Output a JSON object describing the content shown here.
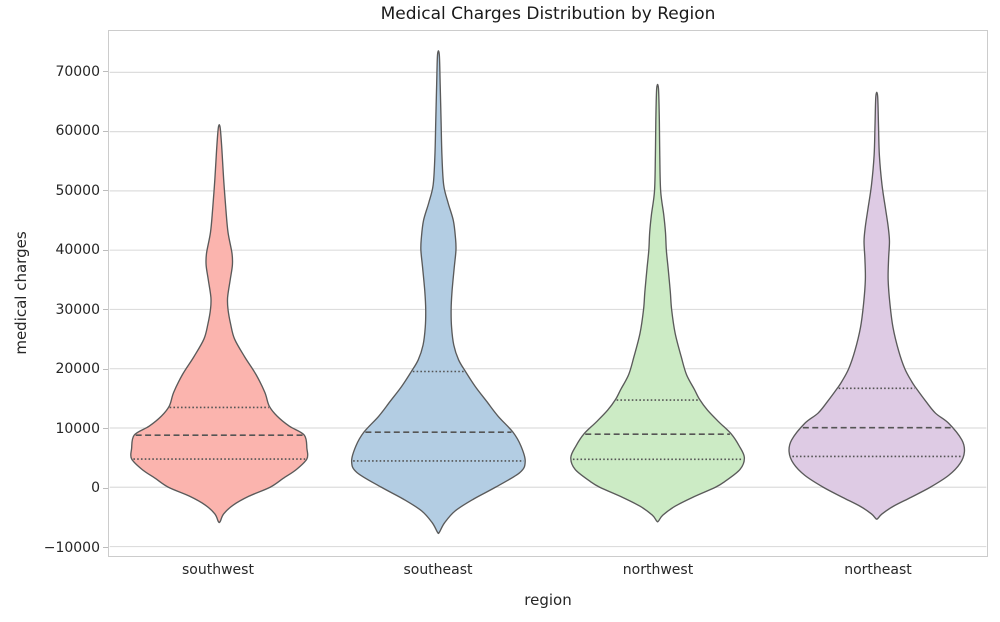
{
  "chart_data": {
    "type": "violin",
    "title": "Medical Charges Distribution by Region",
    "xlabel": "region",
    "ylabel": "medical charges",
    "categories": [
      "southwest",
      "southeast",
      "northwest",
      "northeast"
    ],
    "ylim": [
      -11600,
      77000
    ],
    "yticks": [
      70000,
      60000,
      50000,
      40000,
      30000,
      20000,
      10000,
      0,
      -10000
    ],
    "ytick_labels": [
      "70000",
      "60000",
      "50000",
      "40000",
      "30000",
      "20000",
      "10000",
      "0",
      "−10000"
    ],
    "grid": true,
    "legend": false,
    "inner": "quartile",
    "violin_width": 0.8,
    "series": [
      {
        "name": "southwest",
        "color": "#fbb4ae",
        "quartiles": {
          "q1": 4751,
          "median": 8798,
          "q3": 13462
        },
        "kde_range": [
          -5800,
          60700
        ],
        "profile": [
          [
            60700,
            0.01
          ],
          [
            57000,
            0.03
          ],
          [
            52000,
            0.05
          ],
          [
            47000,
            0.075
          ],
          [
            43000,
            0.1
          ],
          [
            39500,
            0.145
          ],
          [
            37500,
            0.15
          ],
          [
            35000,
            0.125
          ],
          [
            32000,
            0.095
          ],
          [
            30000,
            0.1
          ],
          [
            27500,
            0.13
          ],
          [
            25000,
            0.175
          ],
          [
            22000,
            0.29
          ],
          [
            19000,
            0.42
          ],
          [
            16000,
            0.52
          ],
          [
            13700,
            0.57
          ],
          [
            12000,
            0.66
          ],
          [
            10300,
            0.8
          ],
          [
            8800,
            0.97
          ],
          [
            6500,
            1.0
          ],
          [
            4800,
            1.0
          ],
          [
            3000,
            0.88
          ],
          [
            1500,
            0.73
          ],
          [
            0,
            0.58
          ],
          [
            -1500,
            0.34
          ],
          [
            -3000,
            0.16
          ],
          [
            -4500,
            0.05
          ],
          [
            -5800,
            0.01
          ]
        ]
      },
      {
        "name": "southeast",
        "color": "#b3cde3",
        "quartiles": {
          "q1": 4441,
          "median": 9294,
          "q3": 19527
        },
        "kde_range": [
          -7600,
          73000
        ],
        "profile": [
          [
            73000,
            0.01
          ],
          [
            68000,
            0.02
          ],
          [
            62000,
            0.03
          ],
          [
            56000,
            0.04
          ],
          [
            51000,
            0.06
          ],
          [
            48000,
            0.11
          ],
          [
            45000,
            0.17
          ],
          [
            42000,
            0.195
          ],
          [
            40000,
            0.2
          ],
          [
            37000,
            0.18
          ],
          [
            33000,
            0.155
          ],
          [
            30000,
            0.145
          ],
          [
            27000,
            0.15
          ],
          [
            24000,
            0.175
          ],
          [
            21500,
            0.23
          ],
          [
            19500,
            0.31
          ],
          [
            17000,
            0.42
          ],
          [
            14500,
            0.55
          ],
          [
            12000,
            0.68
          ],
          [
            9300,
            0.85
          ],
          [
            7000,
            0.94
          ],
          [
            4400,
            0.99
          ],
          [
            2500,
            0.93
          ],
          [
            0,
            0.65
          ],
          [
            -2000,
            0.4
          ],
          [
            -4000,
            0.19
          ],
          [
            -6000,
            0.07
          ],
          [
            -7600,
            0.01
          ]
        ]
      },
      {
        "name": "northwest",
        "color": "#ccebc5",
        "quartiles": {
          "q1": 4720,
          "median": 8966,
          "q3": 14712
        },
        "kde_range": [
          -5700,
          67300
        ],
        "profile": [
          [
            67300,
            0.01
          ],
          [
            62000,
            0.02
          ],
          [
            56000,
            0.025
          ],
          [
            50000,
            0.035
          ],
          [
            46000,
            0.07
          ],
          [
            43000,
            0.09
          ],
          [
            40000,
            0.1
          ],
          [
            37000,
            0.12
          ],
          [
            33000,
            0.145
          ],
          [
            30000,
            0.16
          ],
          [
            26000,
            0.2
          ],
          [
            22000,
            0.27
          ],
          [
            19000,
            0.33
          ],
          [
            16500,
            0.42
          ],
          [
            14800,
            0.48
          ],
          [
            13000,
            0.57
          ],
          [
            11000,
            0.7
          ],
          [
            9000,
            0.84
          ],
          [
            7000,
            0.93
          ],
          [
            5000,
            0.99
          ],
          [
            3000,
            0.94
          ],
          [
            1000,
            0.77
          ],
          [
            0,
            0.66
          ],
          [
            -1700,
            0.4
          ],
          [
            -3200,
            0.2
          ],
          [
            -4700,
            0.06
          ],
          [
            -5700,
            0.01
          ]
        ]
      },
      {
        "name": "northeast",
        "color": "#decbe4",
        "quartiles": {
          "q1": 5194,
          "median": 10058,
          "q3": 16687
        },
        "kde_range": [
          -5300,
          66000
        ],
        "profile": [
          [
            66000,
            0.01
          ],
          [
            61000,
            0.02
          ],
          [
            56000,
            0.03
          ],
          [
            51000,
            0.06
          ],
          [
            47000,
            0.1
          ],
          [
            44000,
            0.13
          ],
          [
            41500,
            0.145
          ],
          [
            38500,
            0.135
          ],
          [
            35000,
            0.13
          ],
          [
            31000,
            0.15
          ],
          [
            27000,
            0.185
          ],
          [
            23000,
            0.25
          ],
          [
            20000,
            0.32
          ],
          [
            17800,
            0.4
          ],
          [
            16700,
            0.45
          ],
          [
            14500,
            0.56
          ],
          [
            12500,
            0.67
          ],
          [
            10800,
            0.82
          ],
          [
            8000,
            0.97
          ],
          [
            6000,
            1.0
          ],
          [
            4000,
            0.95
          ],
          [
            2000,
            0.82
          ],
          [
            0,
            0.61
          ],
          [
            -1700,
            0.39
          ],
          [
            -3200,
            0.19
          ],
          [
            -4500,
            0.06
          ],
          [
            -5300,
            0.01
          ]
        ]
      }
    ],
    "style": {
      "violin_edge": "#5a5a5a",
      "quartile_line": "#555555",
      "gridline": "#dddddd",
      "spine": "#cccccc",
      "background": "#ffffff",
      "text": "#262626"
    }
  }
}
